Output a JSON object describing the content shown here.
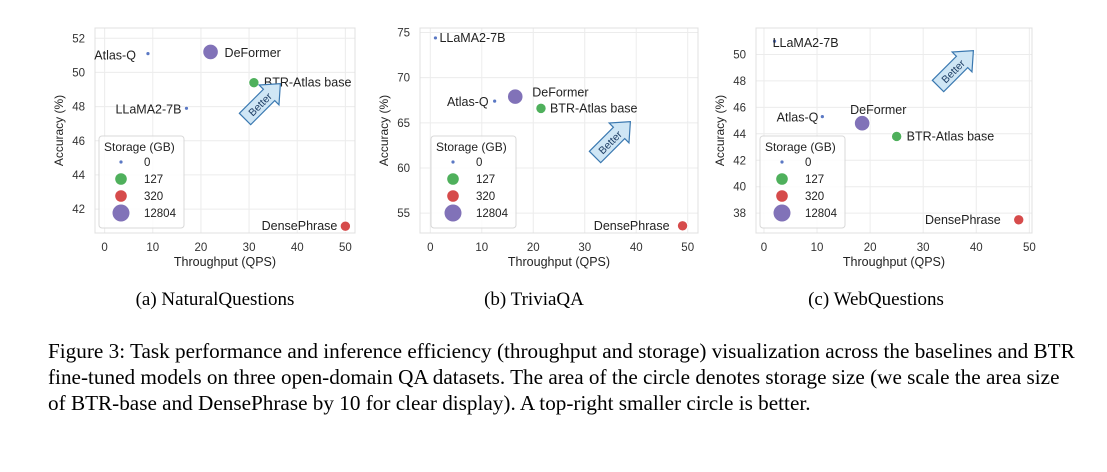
{
  "caption": "Figure 3: Task performance and inference efficiency (throughput and storage) visualization across the baselines and BTR fine-tuned models on three open-domain QA datasets. The area of the circle denotes storage size (we scale the area size of BTR-base and DensePhrase by 10 for clear display). A top-right smaller circle is better.",
  "legend": {
    "title": "Storage (GB)",
    "entries": [
      {
        "label": "0",
        "color": "#5a78c4"
      },
      {
        "label": "127",
        "color": "#4fb05c"
      },
      {
        "label": "320",
        "color": "#d64b4b"
      },
      {
        "label": "12804",
        "color": "#8172b8"
      }
    ]
  },
  "better_label": "Better",
  "chart_data": [
    {
      "type": "scatter",
      "subtitle": "(a) NaturalQuestions",
      "xlabel": "Throughput (QPS)",
      "ylabel": "Accuracy (%)",
      "xlim": [
        -2,
        52
      ],
      "ylim": [
        40.6,
        52.6
      ],
      "xticks": [
        0,
        10,
        20,
        30,
        40,
        50
      ],
      "yticks": [
        42,
        44,
        46,
        48,
        50,
        52
      ],
      "points": [
        {
          "label": "Atlas-Q",
          "x": 9,
          "y": 51.1,
          "storage": 0,
          "color": "#5a78c4"
        },
        {
          "label": "DeFormer",
          "x": 22,
          "y": 51.2,
          "storage": 12804,
          "color": "#8172b8"
        },
        {
          "label": "BTR-Atlas base",
          "x": 31,
          "y": 49.4,
          "storage": 127,
          "color": "#4fb05c"
        },
        {
          "label": "LLaMA2-7B",
          "x": 17,
          "y": 47.9,
          "storage": 0,
          "color": "#5a78c4"
        },
        {
          "label": "DensePhrase",
          "x": 50,
          "y": 41.0,
          "storage": 320,
          "color": "#d64b4b"
        }
      ]
    },
    {
      "type": "scatter",
      "subtitle": "(b) TriviaQA",
      "xlabel": "Throughput (QPS)",
      "ylabel": "Accuracy (%)",
      "xlim": [
        -2,
        52
      ],
      "ylim": [
        52.8,
        75.5
      ],
      "xticks": [
        0,
        10,
        20,
        30,
        40,
        50
      ],
      "yticks": [
        55,
        60,
        65,
        70,
        75
      ],
      "points": [
        {
          "label": "LLaMA2-7B",
          "x": 1,
          "y": 74.4,
          "storage": 0,
          "color": "#5a78c4"
        },
        {
          "label": "Atlas-Q",
          "x": 12.5,
          "y": 67.4,
          "storage": 0,
          "color": "#5a78c4"
        },
        {
          "label": "DeFormer",
          "x": 16.5,
          "y": 67.9,
          "storage": 12804,
          "color": "#8172b8"
        },
        {
          "label": "BTR-Atlas base",
          "x": 21.5,
          "y": 66.6,
          "storage": 127,
          "color": "#4fb05c"
        },
        {
          "label": "DensePhrase",
          "x": 49,
          "y": 53.6,
          "storage": 320,
          "color": "#d64b4b"
        }
      ]
    },
    {
      "type": "scatter",
      "subtitle": "(c) WebQuestions",
      "xlabel": "Throughput (QPS)",
      "ylabel": "Accuracy (%)",
      "xlim": [
        -1.5,
        50.5
      ],
      "ylim": [
        36.5,
        52
      ],
      "xticks": [
        0,
        10,
        20,
        30,
        40,
        50
      ],
      "yticks": [
        38,
        40,
        42,
        44,
        46,
        48,
        50
      ],
      "points": [
        {
          "label": "LLaMA2-7B",
          "x": 2,
          "y": 51.0,
          "storage": 0,
          "color": "#5a78c4"
        },
        {
          "label": "Atlas-Q",
          "x": 11,
          "y": 45.3,
          "storage": 0,
          "color": "#5a78c4"
        },
        {
          "label": "DeFormer",
          "x": 18.5,
          "y": 44.8,
          "storage": 12804,
          "color": "#8172b8"
        },
        {
          "label": "BTR-Atlas base",
          "x": 25,
          "y": 43.8,
          "storage": 127,
          "color": "#4fb05c"
        },
        {
          "label": "DensePhrase",
          "x": 48,
          "y": 37.5,
          "storage": 320,
          "color": "#d64b4b"
        }
      ]
    }
  ]
}
